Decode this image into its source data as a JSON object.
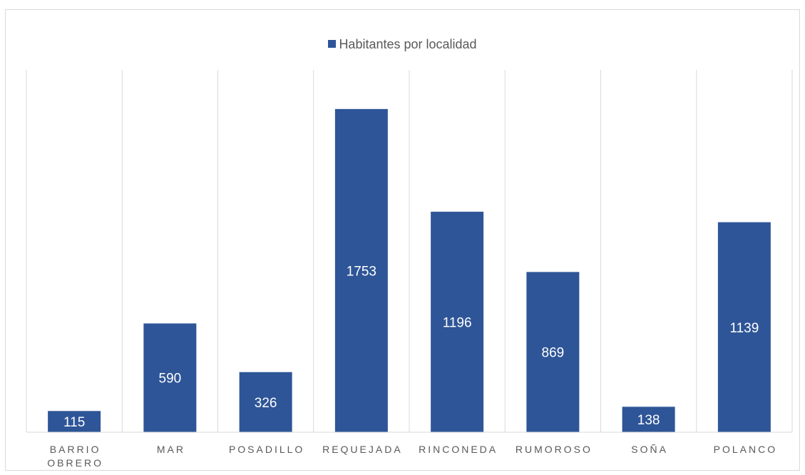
{
  "chart_data": {
    "type": "bar",
    "categories": [
      [
        "BARRIO",
        "OBRERO"
      ],
      [
        "MAR"
      ],
      [
        "POSADILLO"
      ],
      [
        "REQUEJADA"
      ],
      [
        "RINCONEDA"
      ],
      [
        "RUMOROSO"
      ],
      [
        "SOÑA"
      ],
      [
        "POLANCO"
      ]
    ],
    "series": [
      {
        "name": "Habitantes por localidad",
        "values": [
          115,
          590,
          326,
          1753,
          1196,
          869,
          138,
          1139
        ]
      }
    ],
    "data_labels": [
      "115",
      "590",
      "326",
      "1753",
      "1196",
      "869",
      "138",
      "1139"
    ],
    "ylim": [
      0,
      2000
    ],
    "legend_position": "top",
    "vertical_gridlines": true,
    "horizontal_gridlines": false
  },
  "colors": {
    "bar": "#2e5597",
    "gridline": "#d9d9d9",
    "axis_text": "#595959",
    "data_label": "#ffffff"
  }
}
